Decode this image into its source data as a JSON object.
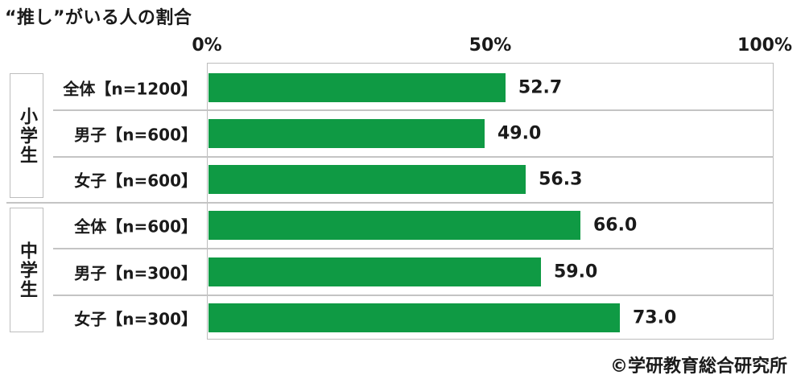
{
  "chart_data": {
    "type": "bar",
    "orientation": "horizontal",
    "title": "“推し”がいる人の割合",
    "xlim": [
      0,
      100
    ],
    "x_ticks": [
      "0%",
      "50%",
      "100%"
    ],
    "groups": [
      {
        "name": "小学生",
        "categories": [
          "全体【n=1200】",
          "男子【n=600】",
          "女子【n=600】"
        ],
        "values": [
          52.7,
          49.0,
          56.3
        ],
        "labels": [
          "52.7",
          "49.0",
          "56.3"
        ]
      },
      {
        "name": "中学生",
        "categories": [
          "全体【n=600】",
          "男子【n=300】",
          "女子【n=300】"
        ],
        "values": [
          66.0,
          59.0,
          73.0
        ],
        "labels": [
          "66.0",
          "59.0",
          "73.0"
        ]
      }
    ],
    "bar_color": "#0f9a44",
    "grid": true,
    "source": "©学研教育総合研究所"
  }
}
